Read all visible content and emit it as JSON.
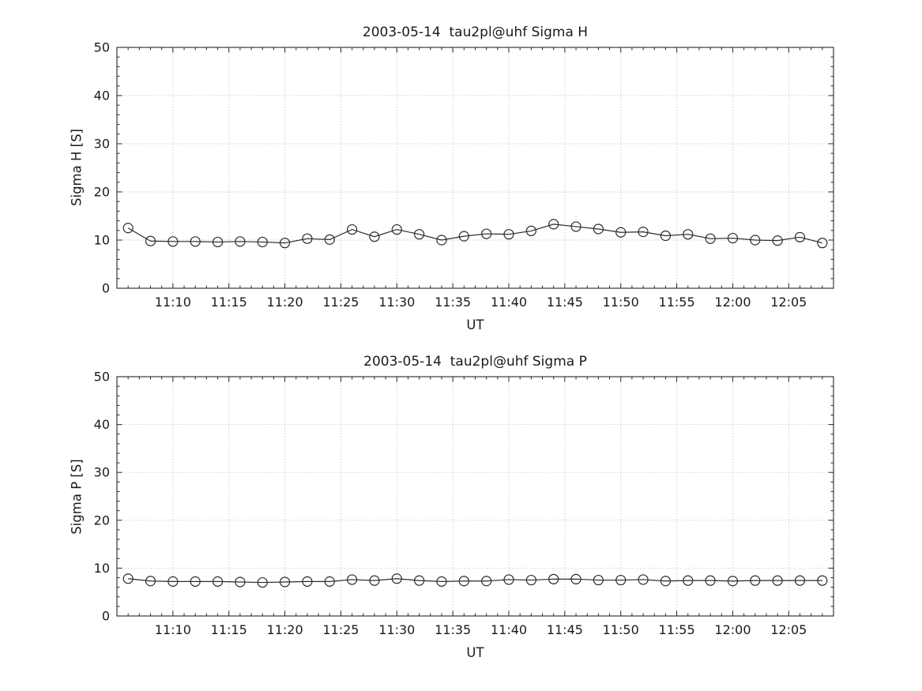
{
  "figure": {
    "background": "#ffffff",
    "text_color": "#1a1a1a",
    "line_color": "#2a2a2a",
    "grid_color": "#b6b6b6",
    "axis_color": "#262626"
  },
  "chart_data": [
    {
      "type": "line",
      "title": "2003-05-14  tau2pl@uhf Sigma H",
      "xlabel": "UT",
      "ylabel": "Sigma H [S]",
      "ylim": [
        0,
        50
      ],
      "yticks": [
        0,
        10,
        20,
        30,
        40,
        50
      ],
      "y_minor_step": 2,
      "x_range": [
        "11:05",
        "12:09"
      ],
      "xtick_labels": [
        "11:10",
        "11:15",
        "11:20",
        "11:25",
        "11:30",
        "11:35",
        "11:40",
        "11:45",
        "11:50",
        "11:55",
        "12:00",
        "12:05"
      ],
      "x_minor_step_minutes": 1,
      "grid": "dotted",
      "marker": "open-circle",
      "x": [
        "11:06",
        "11:08",
        "11:10",
        "11:12",
        "11:14",
        "11:16",
        "11:18",
        "11:20",
        "11:22",
        "11:24",
        "11:26",
        "11:28",
        "11:30",
        "11:32",
        "11:34",
        "11:36",
        "11:38",
        "11:40",
        "11:42",
        "11:44",
        "11:46",
        "11:48",
        "11:50",
        "11:52",
        "11:54",
        "11:56",
        "11:58",
        "12:00",
        "12:02",
        "12:04",
        "12:06",
        "12:08"
      ],
      "y": [
        12.5,
        9.8,
        9.7,
        9.7,
        9.6,
        9.7,
        9.6,
        9.4,
        10.3,
        10.1,
        12.2,
        10.7,
        12.2,
        11.2,
        10.0,
        10.8,
        11.3,
        11.2,
        11.9,
        13.3,
        12.8,
        12.3,
        11.6,
        11.7,
        10.9,
        11.2,
        10.3,
        10.4,
        10.0,
        9.9,
        10.6,
        9.4
      ]
    },
    {
      "type": "line",
      "title": "2003-05-14  tau2pl@uhf Sigma P",
      "xlabel": "UT",
      "ylabel": "Sigma P [S]",
      "ylim": [
        0,
        50
      ],
      "yticks": [
        0,
        10,
        20,
        30,
        40,
        50
      ],
      "y_minor_step": 2,
      "x_range": [
        "11:05",
        "12:09"
      ],
      "xtick_labels": [
        "11:10",
        "11:15",
        "11:20",
        "11:25",
        "11:30",
        "11:35",
        "11:40",
        "11:45",
        "11:50",
        "11:55",
        "12:00",
        "12:05"
      ],
      "x_minor_step_minutes": 1,
      "grid": "dotted",
      "marker": "open-circle",
      "x": [
        "11:06",
        "11:08",
        "11:10",
        "11:12",
        "11:14",
        "11:16",
        "11:18",
        "11:20",
        "11:22",
        "11:24",
        "11:26",
        "11:28",
        "11:30",
        "11:32",
        "11:34",
        "11:36",
        "11:38",
        "11:40",
        "11:42",
        "11:44",
        "11:46",
        "11:48",
        "11:50",
        "11:52",
        "11:54",
        "11:56",
        "11:58",
        "12:00",
        "12:02",
        "12:04",
        "12:06",
        "12:08"
      ],
      "y": [
        7.8,
        7.3,
        7.2,
        7.2,
        7.2,
        7.1,
        7.0,
        7.1,
        7.2,
        7.2,
        7.6,
        7.4,
        7.8,
        7.4,
        7.2,
        7.3,
        7.3,
        7.6,
        7.5,
        7.7,
        7.7,
        7.5,
        7.5,
        7.6,
        7.3,
        7.4,
        7.4,
        7.3,
        7.4,
        7.4,
        7.4,
        7.4
      ]
    }
  ]
}
